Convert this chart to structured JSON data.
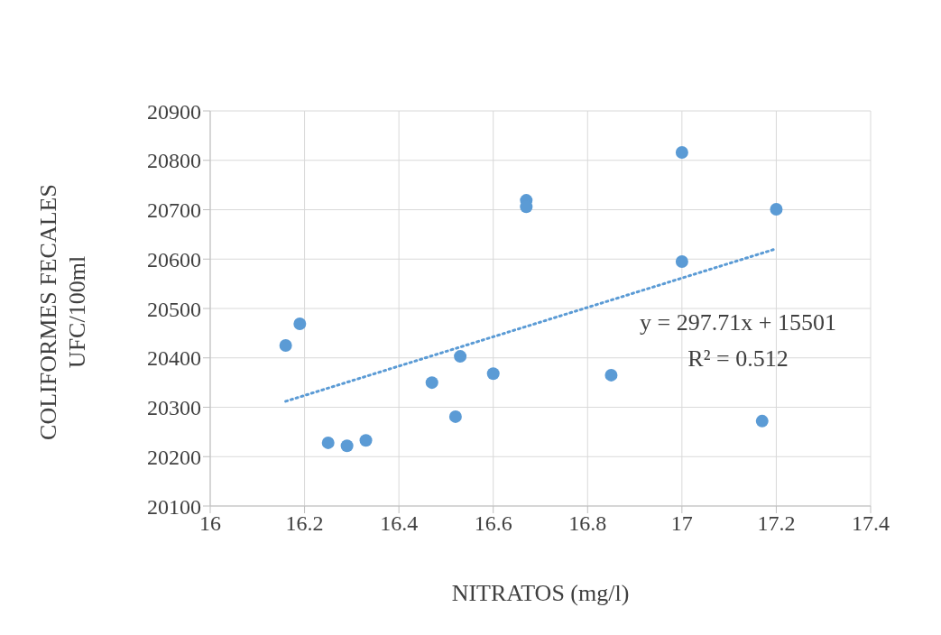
{
  "chart_data": {
    "type": "scatter",
    "xlabel": "NITRATOS (mg/l)",
    "ylabel": "COLIFORMES FECALES UFC/100ml",
    "annotations": [
      "y = 297.71x + 15501",
      "R² = 0.512"
    ],
    "xlim": [
      16,
      17.4
    ],
    "xticks": [
      16,
      16.2,
      16.4,
      16.6,
      16.8,
      17,
      17.2,
      17.4
    ],
    "ylim": [
      20100,
      20900
    ],
    "yticks": [
      20100,
      20200,
      20300,
      20400,
      20500,
      20600,
      20700,
      20800,
      20900
    ],
    "grid": true,
    "legend": false,
    "marker": "circle",
    "series": [
      {
        "type": "scatter",
        "color": "#5b9bd5",
        "x": [
          16.16,
          16.19,
          16.25,
          16.29,
          16.33,
          16.47,
          16.52,
          16.53,
          16.6,
          16.67,
          16.67,
          16.85,
          17,
          17,
          17.2,
          17.17
        ],
        "values": [
          20425,
          20469,
          20228,
          20222,
          20233,
          20350,
          20281,
          20403,
          20368,
          20719,
          20706,
          20365,
          20816,
          20595,
          20701,
          20272
        ]
      },
      {
        "type": "line",
        "color": "#5b9bd5",
        "line_style": "dotted",
        "marker": "none",
        "x": [
          16.16,
          17.2
        ],
        "values": [
          20312,
          20621
        ]
      }
    ]
  }
}
